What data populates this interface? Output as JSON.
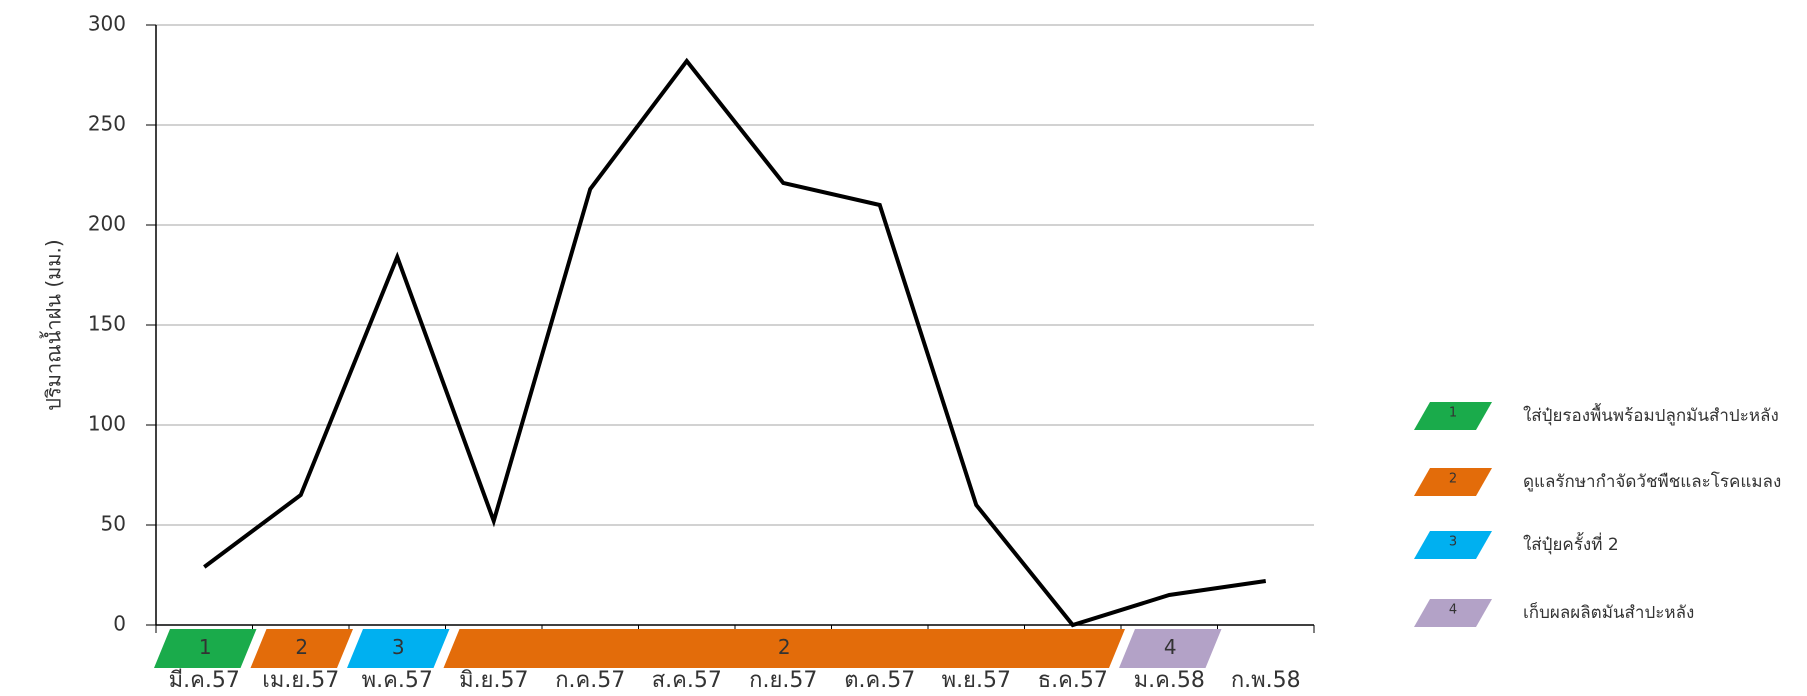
{
  "chart_data": {
    "type": "line",
    "y_label": "ปริมาณน้ำฝน (มม.)",
    "categories": [
      "มี.ค.57",
      "เม.ย.57",
      "พ.ค.57",
      "มิ.ย.57",
      "ก.ค.57",
      "ส.ค.57",
      "ก.ย.57",
      "ต.ค.57",
      "พ.ย.57",
      "ธ.ค.57",
      "ม.ค.58",
      "ก.พ.58"
    ],
    "values": [
      29,
      65,
      184,
      52,
      218,
      282,
      221,
      210,
      60,
      0,
      15,
      22
    ],
    "color": "#000000",
    "ylim": [
      0,
      300
    ],
    "yticks": [
      0,
      50,
      100,
      150,
      200,
      250,
      300
    ],
    "grid": true,
    "phases": [
      {
        "label": "1",
        "from": "มี.ค.57",
        "to": "มี.ค.57",
        "color": "#1aab4b"
      },
      {
        "label": "2",
        "from": "เม.ย.57",
        "to": "เม.ย.57",
        "color": "#e36c0a"
      },
      {
        "label": "3",
        "from": "พ.ค.57",
        "to": "พ.ค.57",
        "color": "#00b0f0"
      },
      {
        "label": "2",
        "from": "มิ.ย.57",
        "to": "ธ.ค.57",
        "color": "#e36c0a"
      },
      {
        "label": "4",
        "from": "ม.ค.58",
        "to": "ม.ค.58",
        "color": "#b3a2c7"
      }
    ],
    "legend": [
      {
        "number": "1",
        "text": "ใส่ปุ๋ยรองพื้นพร้อมปลูกมันสำปะหลัง",
        "color": "#1aab4b"
      },
      {
        "number": "2",
        "text": "ดูแลรักษากำจัดวัชพืชและโรคแมลง",
        "color": "#e36c0a"
      },
      {
        "number": "3",
        "text": "ใส่ปุ๋ยครั้งที่ 2",
        "color": "#00b0f0"
      },
      {
        "number": "4",
        "text": "เก็บผลผลิตมันสำปะหลัง",
        "color": "#b3a2c7"
      }
    ]
  }
}
